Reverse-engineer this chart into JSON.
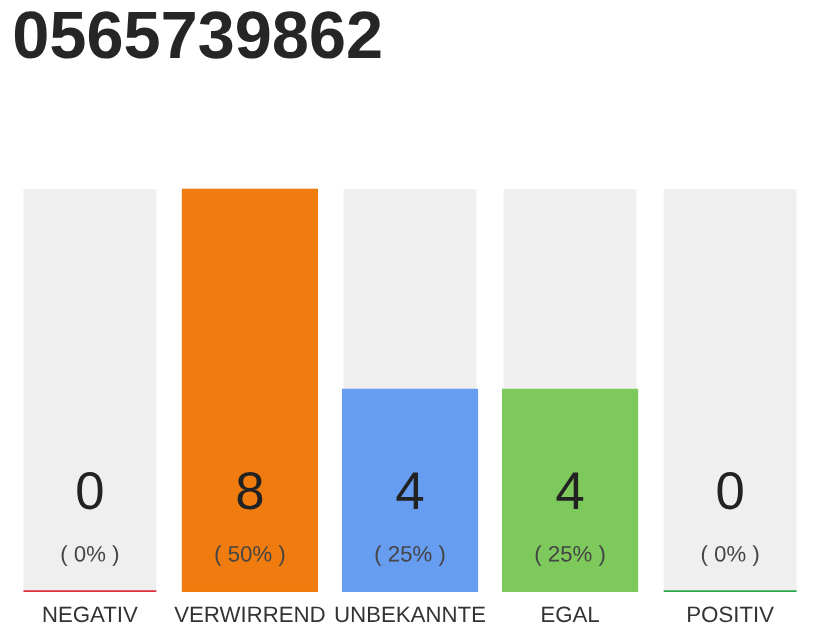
{
  "chart_data": {
    "type": "bar",
    "title": "0565739862",
    "categories": [
      "NEGATIV",
      "VERWIRREND",
      "UNBEKANNTE",
      "EGAL",
      "POSITIV"
    ],
    "values": [
      0,
      8,
      4,
      4,
      0
    ],
    "colors": [
      "#e0303f",
      "#f07c0f",
      "#669df0",
      "#7ec95c",
      "#2aa84a"
    ],
    "data_labels": true,
    "annotations": [
      "( 0% )",
      "( 50% )",
      "( 25% )",
      "( 25% )",
      "( 0% )"
    ]
  }
}
